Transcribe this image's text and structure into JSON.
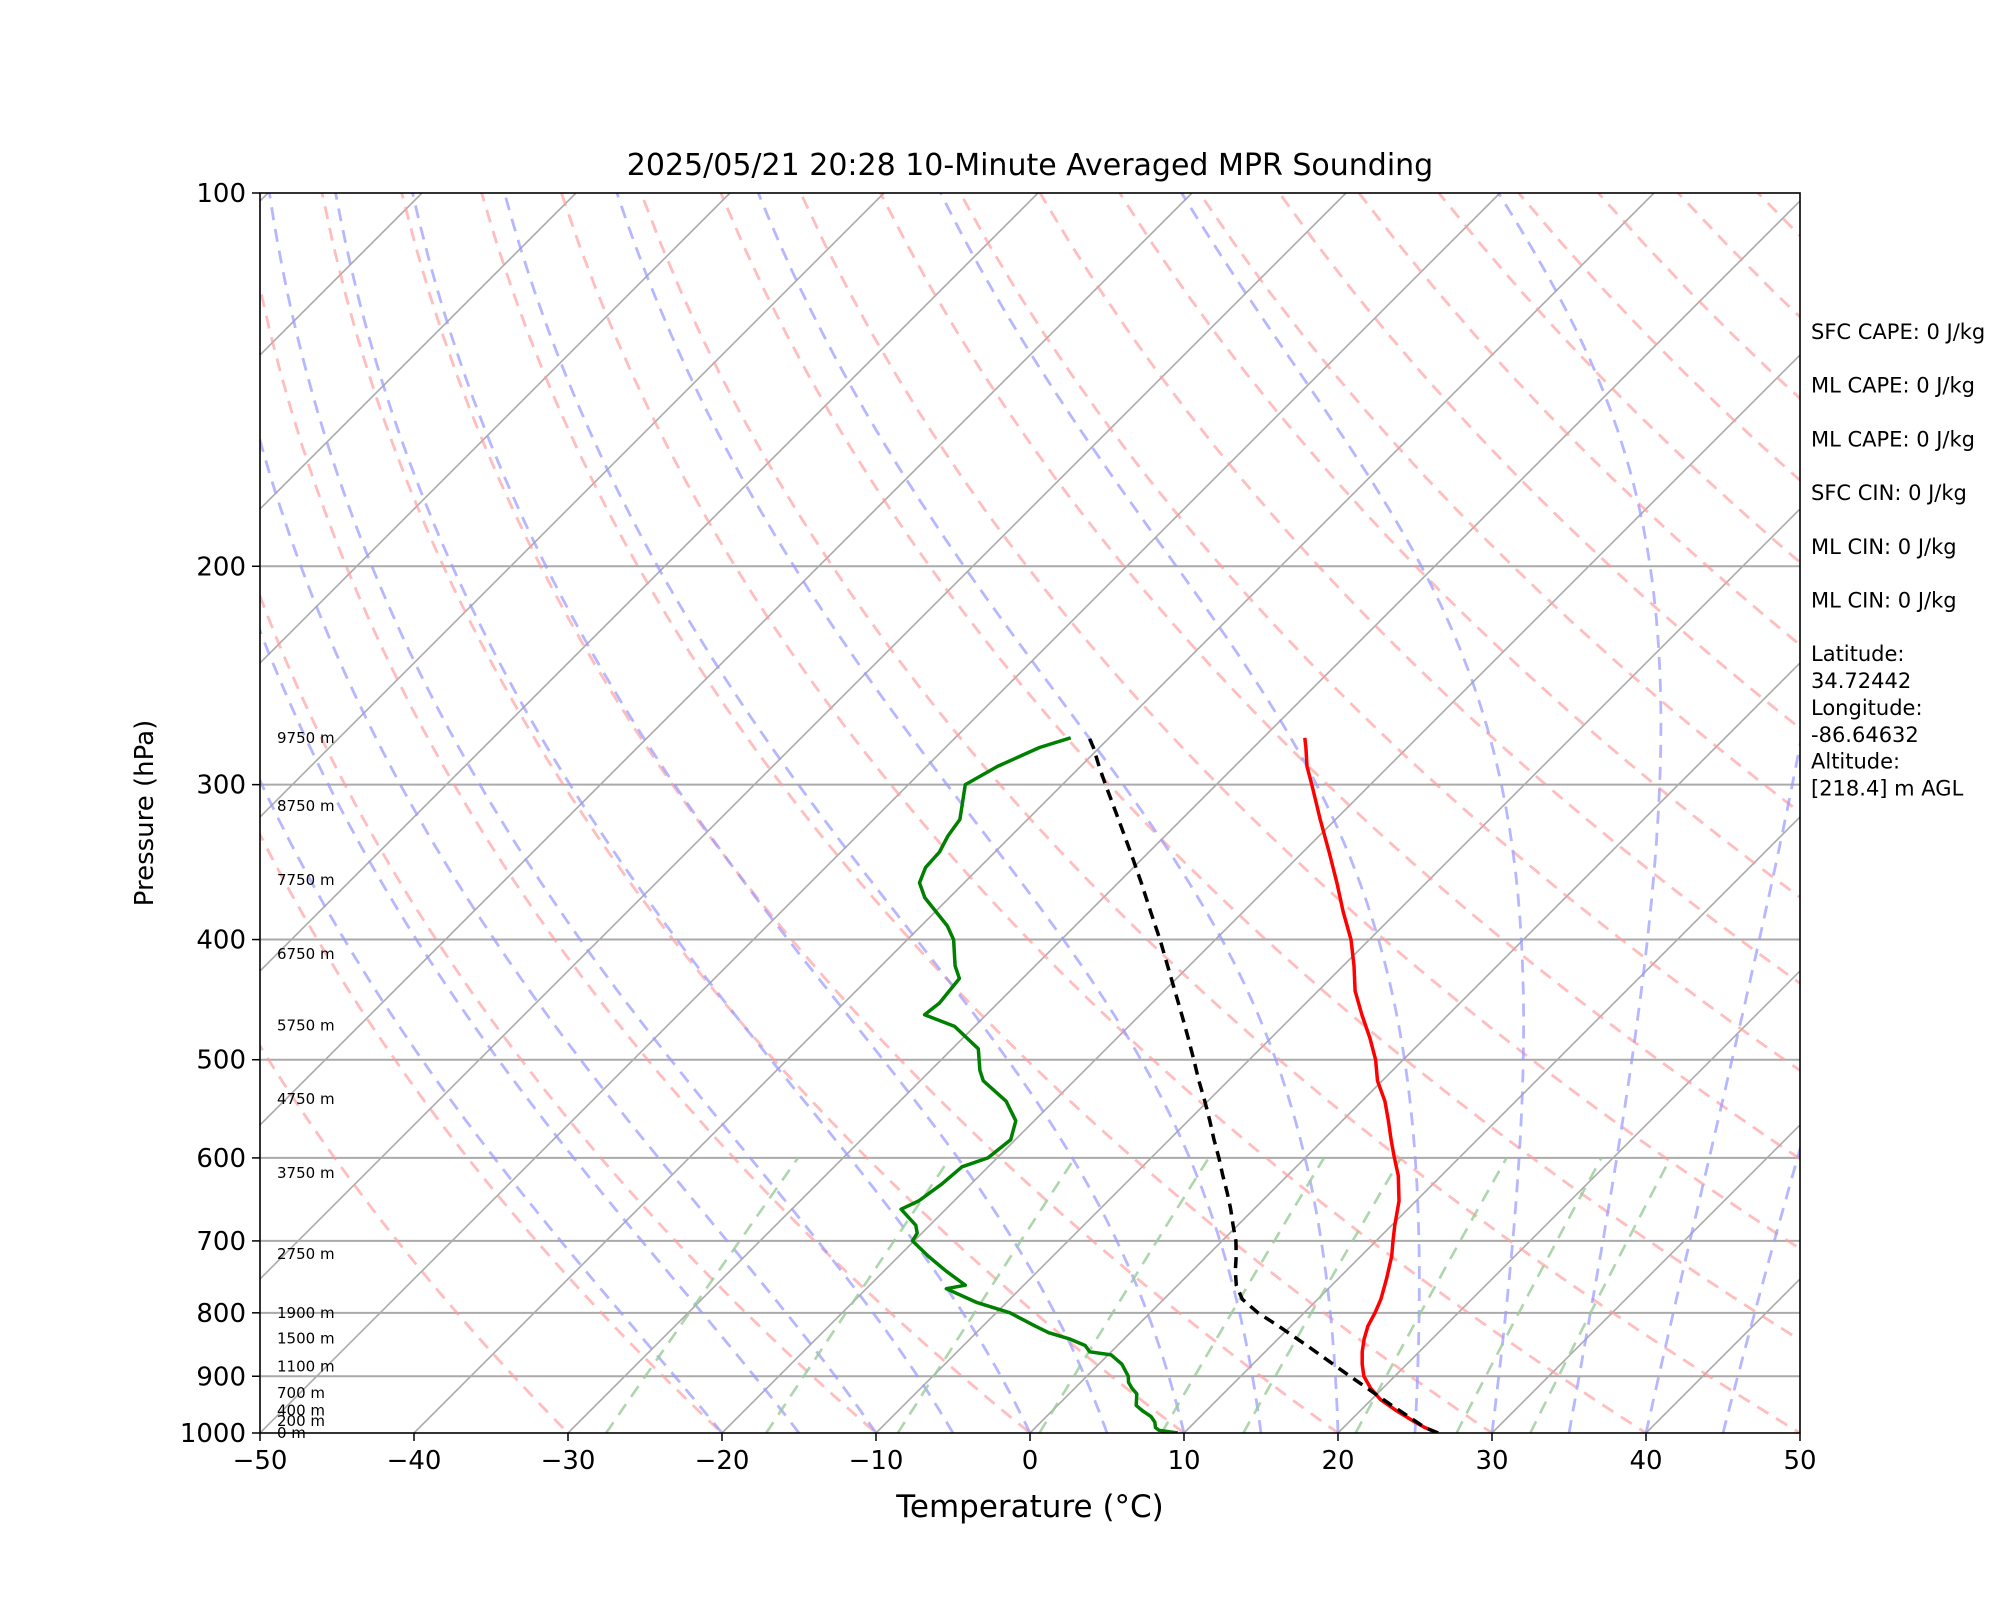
{
  "chart_data": {
    "type": "line",
    "subtype": "skew-T log-P diagram",
    "title": "2025/05/21 20:28 10-Minute Averaged MPR Sounding",
    "xlabel": "Temperature (°C)",
    "ylabel": "Pressure (hPa)",
    "xlim": [
      -50,
      50
    ],
    "ylim": [
      1000,
      100
    ],
    "y_scale": "log",
    "x_ticks": [
      "−50",
      "−40",
      "−30",
      "−20",
      "−10",
      "0",
      "10",
      "20",
      "30",
      "40",
      "50"
    ],
    "y_ticks": [
      "100",
      "200",
      "300",
      "400",
      "500",
      "600",
      "700",
      "800",
      "900",
      "1000"
    ],
    "grid": true,
    "colors": {
      "temperature": "#ff0000",
      "dewpoint": "#008000",
      "parcel": "#000000",
      "dry_adiabats": "#ff9999",
      "moist_adiabats": "#9999ff",
      "mixing_ratio": "#99cc99",
      "isotherms": "#aaaaaa"
    },
    "series": [
      {
        "key": "temperature",
        "style": "solid",
        "points": [
          [
            1000,
            26.5
          ],
          [
            990,
            25.3
          ],
          [
            980,
            24.3
          ],
          [
            960,
            22.4
          ],
          [
            940,
            20.6
          ],
          [
            920,
            19.2
          ],
          [
            900,
            18.0
          ],
          [
            880,
            17.1
          ],
          [
            860,
            16.3
          ],
          [
            840,
            15.6
          ],
          [
            820,
            15.0
          ],
          [
            800,
            14.6
          ],
          [
            780,
            14.1
          ],
          [
            750,
            13.1
          ],
          [
            720,
            12.0
          ],
          [
            700,
            11.1
          ],
          [
            680,
            10.2
          ],
          [
            650,
            8.9
          ],
          [
            620,
            7.2
          ],
          [
            600,
            5.8
          ],
          [
            580,
            4.4
          ],
          [
            560,
            3.0
          ],
          [
            540,
            1.5
          ],
          [
            520,
            -0.3
          ],
          [
            500,
            -1.8
          ],
          [
            480,
            -3.6
          ],
          [
            460,
            -5.6
          ],
          [
            440,
            -7.6
          ],
          [
            420,
            -9.3
          ],
          [
            400,
            -11.2
          ],
          [
            380,
            -13.5
          ],
          [
            360,
            -15.8
          ],
          [
            340,
            -18.3
          ],
          [
            320,
            -21.0
          ],
          [
            300,
            -23.8
          ],
          [
            290,
            -25.3
          ],
          [
            280,
            -26.6
          ],
          [
            275,
            -27.3
          ]
        ]
      },
      {
        "key": "dewpoint",
        "style": "solid",
        "points": [
          [
            1000,
            9.6
          ],
          [
            995,
            8.2
          ],
          [
            990,
            7.8
          ],
          [
            980,
            7.4
          ],
          [
            970,
            6.8
          ],
          [
            960,
            5.9
          ],
          [
            950,
            5.1
          ],
          [
            930,
            4.4
          ],
          [
            920,
            3.7
          ],
          [
            910,
            3.1
          ],
          [
            900,
            2.7
          ],
          [
            880,
            1.5
          ],
          [
            865,
            0.2
          ],
          [
            860,
            -1.4
          ],
          [
            850,
            -2.1
          ],
          [
            840,
            -3.5
          ],
          [
            830,
            -5.3
          ],
          [
            820,
            -6.6
          ],
          [
            800,
            -9.1
          ],
          [
            785,
            -11.9
          ],
          [
            765,
            -14.8
          ],
          [
            760,
            -13.8
          ],
          [
            740,
            -16.0
          ],
          [
            720,
            -18.1
          ],
          [
            700,
            -20.1
          ],
          [
            690,
            -20.3
          ],
          [
            680,
            -20.9
          ],
          [
            660,
            -22.9
          ],
          [
            650,
            -22.3
          ],
          [
            630,
            -21.9
          ],
          [
            610,
            -21.7
          ],
          [
            600,
            -20.6
          ],
          [
            580,
            -20.3
          ],
          [
            560,
            -21.2
          ],
          [
            540,
            -23.1
          ],
          [
            520,
            -25.9
          ],
          [
            510,
            -26.8
          ],
          [
            490,
            -28.3
          ],
          [
            470,
            -31.3
          ],
          [
            460,
            -34.0
          ],
          [
            450,
            -33.8
          ],
          [
            430,
            -34.1
          ],
          [
            420,
            -35.2
          ],
          [
            400,
            -37.0
          ],
          [
            390,
            -38.3
          ],
          [
            370,
            -41.6
          ],
          [
            360,
            -42.9
          ],
          [
            350,
            -43.5
          ],
          [
            340,
            -43.6
          ],
          [
            330,
            -44.1
          ],
          [
            320,
            -44.4
          ],
          [
            300,
            -46.3
          ],
          [
            290,
            -45.4
          ],
          [
            280,
            -43.9
          ],
          [
            275,
            -42.5
          ]
        ]
      },
      {
        "key": "parcel",
        "style": "dashed",
        "points": [
          [
            1000,
            26.5
          ],
          [
            990,
            25.3
          ],
          [
            950,
            21.7
          ],
          [
            900,
            17.1
          ],
          [
            850,
            12.3
          ],
          [
            820,
            9.2
          ],
          [
            800,
            7.0
          ],
          [
            780,
            5.1
          ],
          [
            760,
            3.8
          ],
          [
            740,
            2.8
          ],
          [
            720,
            1.9
          ],
          [
            700,
            0.9
          ],
          [
            680,
            -0.3
          ],
          [
            660,
            -1.5
          ],
          [
            640,
            -2.8
          ],
          [
            620,
            -4.2
          ],
          [
            600,
            -5.6
          ],
          [
            580,
            -7.1
          ],
          [
            560,
            -8.6
          ],
          [
            540,
            -10.2
          ],
          [
            520,
            -11.9
          ],
          [
            500,
            -13.6
          ],
          [
            480,
            -15.4
          ],
          [
            460,
            -17.3
          ],
          [
            440,
            -19.3
          ],
          [
            420,
            -21.4
          ],
          [
            400,
            -23.6
          ],
          [
            380,
            -26.0
          ],
          [
            360,
            -28.5
          ],
          [
            340,
            -31.2
          ],
          [
            320,
            -34.1
          ],
          [
            300,
            -37.2
          ],
          [
            290,
            -38.8
          ],
          [
            280,
            -40.4
          ],
          [
            275,
            -41.3
          ]
        ]
      }
    ],
    "height_labels": [
      {
        "text": "9750 m",
        "p": 275
      },
      {
        "text": "8750 m",
        "p": 312
      },
      {
        "text": "7750 m",
        "p": 358
      },
      {
        "text": "6750 m",
        "p": 411
      },
      {
        "text": "5750 m",
        "p": 469
      },
      {
        "text": "4750 m",
        "p": 538
      },
      {
        "text": "3750 m",
        "p": 617
      },
      {
        "text": "2750 m",
        "p": 717
      },
      {
        "text": "1900 m",
        "p": 800
      },
      {
        "text": "1500 m",
        "p": 839
      },
      {
        "text": "1100 m",
        "p": 884
      },
      {
        "text": "700 m",
        "p": 928
      },
      {
        "text": "400 m",
        "p": 959
      },
      {
        "text": "200 m",
        "p": 978
      },
      {
        "text": "0 m",
        "p": 1000
      }
    ],
    "annotations": [
      [
        "SFC CAPE: 0 J/kg"
      ],
      [
        "ML CAPE: 0 J/kg"
      ],
      [
        "ML CAPE: 0 J/kg"
      ],
      [
        "SFC CIN: 0 J/kg"
      ],
      [
        "ML CIN: 0 J/kg"
      ],
      [
        "ML CIN: 0 J/kg"
      ],
      [
        "Latitude:",
        "34.72442"
      ],
      [
        "Longitude:",
        "-86.64632"
      ],
      [
        "Altitude:",
        "[218.4] m AGL"
      ]
    ]
  }
}
